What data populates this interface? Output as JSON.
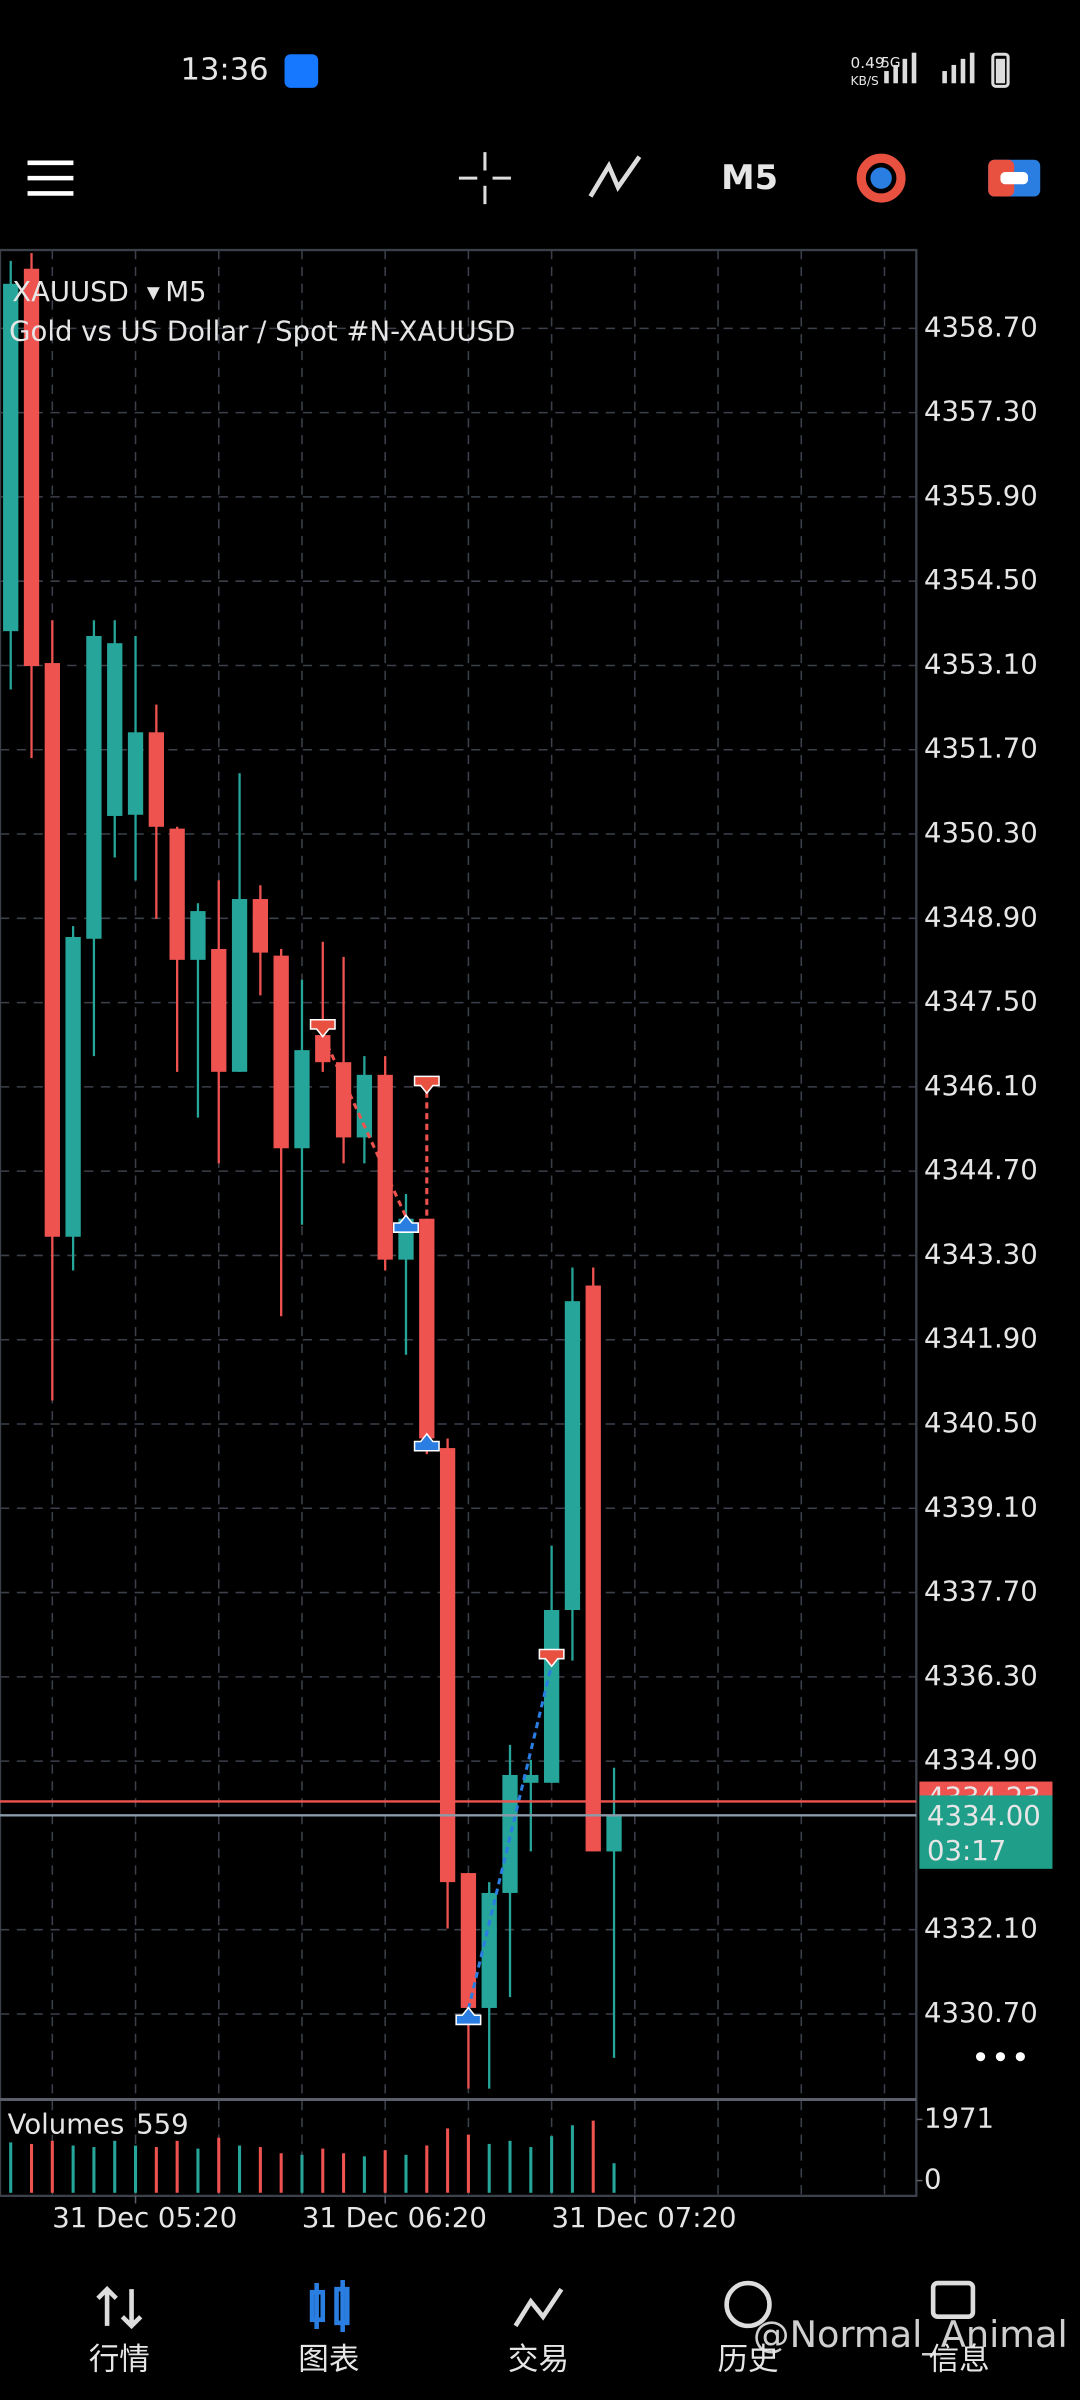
{
  "status_bar": {
    "time": "13:36",
    "speed": "0.49",
    "speed_unit": "KB/S",
    "network": "5G"
  },
  "toolbar": {
    "timeframe": "M5"
  },
  "chart_data": {
    "type": "candlestick",
    "symbol": "XAUUSD",
    "timeframe": "M5",
    "description": "Gold vs US Dollar / Spot #N-XAUUSD",
    "up_color": "#26a69a",
    "down_color": "#ef5350",
    "grid": true,
    "open": [
      4353.67,
      4359.69,
      4353.14,
      4343.61,
      4348.56,
      4350.6,
      4350.62,
      4351.99,
      4350.39,
      4348.21,
      4348.39,
      4346.35,
      4349.22,
      4348.28,
      4345.08,
      4346.96,
      4346.51,
      4345.26,
      4346.3,
      4343.23,
      4343.91,
      4340.1,
      4333.04,
      4330.8,
      4332.71,
      4334.54,
      4334.54,
      4337.41,
      4342.8,
      4333.4
    ],
    "high": [
      4359.82,
      4359.95,
      4353.85,
      4348.77,
      4353.85,
      4353.85,
      4353.59,
      4352.45,
      4350.42,
      4349.15,
      4349.53,
      4351.31,
      4349.45,
      4348.39,
      4347.88,
      4348.51,
      4348.26,
      4346.61,
      4346.61,
      4344.32,
      4343.91,
      4340.26,
      4333.04,
      4332.89,
      4335.17,
      4334.92,
      4338.48,
      4343.1,
      4343.1,
      4334.79
    ],
    "low": [
      4352.7,
      4351.56,
      4340.89,
      4343.05,
      4346.61,
      4349.91,
      4349.53,
      4348.89,
      4346.35,
      4345.59,
      4344.83,
      4346.35,
      4347.62,
      4342.29,
      4343.81,
      4346.35,
      4344.83,
      4344.83,
      4343.05,
      4341.65,
      4340.0,
      4332.12,
      4329.46,
      4329.46,
      4330.98,
      4333.4,
      4334.54,
      4336.57,
      4333.4,
      4329.97
    ],
    "close": [
      4359.44,
      4353.09,
      4343.61,
      4348.59,
      4353.59,
      4353.47,
      4351.99,
      4350.42,
      4348.21,
      4349.02,
      4346.35,
      4349.22,
      4348.33,
      4345.08,
      4346.71,
      4346.51,
      4345.26,
      4346.3,
      4343.23,
      4343.91,
      4340.26,
      4332.89,
      4330.8,
      4332.71,
      4334.67,
      4334.67,
      4337.41,
      4342.54,
      4333.4,
      4334.0
    ],
    "ylim": [
      4329.33,
      4359.95
    ],
    "yticks": [
      {
        "value": 4358.7,
        "label": "4358.70"
      },
      {
        "value": 4357.3,
        "label": "4357.30"
      },
      {
        "value": 4355.9,
        "label": "4355.90"
      },
      {
        "value": 4354.5,
        "label": "4354.50"
      },
      {
        "value": 4353.1,
        "label": "4353.10"
      },
      {
        "value": 4351.7,
        "label": "4351.70"
      },
      {
        "value": 4350.3,
        "label": "4350.30"
      },
      {
        "value": 4348.9,
        "label": "4348.90"
      },
      {
        "value": 4347.5,
        "label": "4347.50"
      },
      {
        "value": 4346.1,
        "label": "4346.10"
      },
      {
        "value": 4344.7,
        "label": "4344.70"
      },
      {
        "value": 4343.3,
        "label": "4343.30"
      },
      {
        "value": 4341.9,
        "label": "4341.90"
      },
      {
        "value": 4340.5,
        "label": "4340.50"
      },
      {
        "value": 4339.1,
        "label": "4339.10"
      },
      {
        "value": 4337.7,
        "label": "4337.70"
      },
      {
        "value": 4336.3,
        "label": "4336.30"
      },
      {
        "value": 4334.9,
        "label": "4334.90"
      },
      {
        "value": 4332.1,
        "label": "4332.10"
      },
      {
        "value": 4330.7,
        "label": "4330.70"
      }
    ],
    "xticks": [
      {
        "value": 6,
        "label": "31 Dec 05:20"
      },
      {
        "value": 18,
        "label": "31 Dec 06:20"
      },
      {
        "value": 30,
        "label": "31 Dec 07:20"
      }
    ],
    "bid": {
      "value": 4334.0,
      "label": "4334.00"
    },
    "countdown": "03:17",
    "ask": {
      "value": 4334.23,
      "label": "4334.23"
    },
    "trades": [
      {
        "side": "sell",
        "index": 15,
        "price": 4346.96
      },
      {
        "side": "buy",
        "index": 19,
        "price": 4343.94
      },
      {
        "side": "sell",
        "index": 20,
        "price": 4346.02
      },
      {
        "side": "buy",
        "index": 20,
        "price": 4340.31
      },
      {
        "side": "buy",
        "index": 22,
        "price": 4330.78
      },
      {
        "side": "sell",
        "index": 26,
        "price": 4336.5
      }
    ],
    "volumes": {
      "label": "Volumes",
      "values": [
        1230,
        1180,
        1280,
        1130,
        1080,
        1280,
        1130,
        1080,
        1280,
        1030,
        1380,
        1130,
        1080,
        880,
        830,
        1030,
        880,
        780,
        980,
        830,
        1130,
        1680,
        1480,
        1180,
        1280,
        1080,
        1430,
        1780,
        1930,
        559
      ],
      "ylim": [
        0,
        1971
      ],
      "yticks": [
        1971,
        0
      ]
    }
  },
  "nav": {
    "items": [
      "行情",
      "图表",
      "交易",
      "历史",
      "信息"
    ],
    "active": 1
  },
  "watermark": "@Normal_Animal"
}
